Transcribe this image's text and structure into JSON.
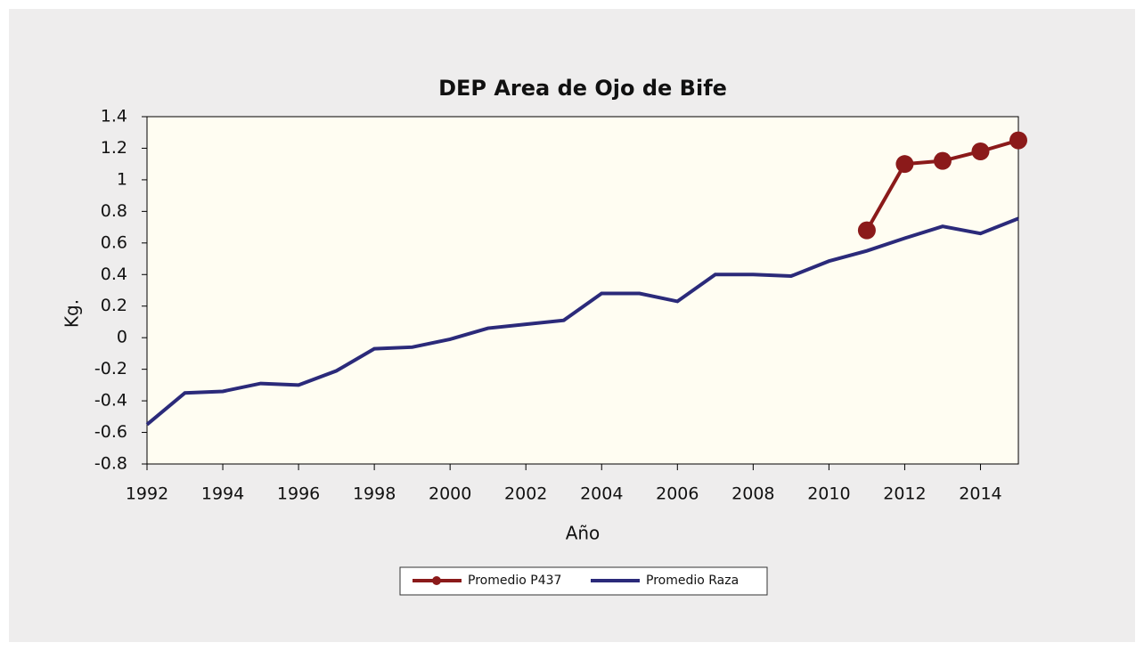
{
  "chart_data": {
    "type": "line",
    "title": "DEP Area de Ojo de Bife",
    "xlabel": "Año",
    "ylabel": "Kg.",
    "x": [
      1992,
      1993,
      1994,
      1995,
      1996,
      1997,
      1998,
      1999,
      2000,
      2001,
      2002,
      2003,
      2004,
      2005,
      2006,
      2007,
      2008,
      2009,
      2010,
      2011,
      2012,
      2013,
      2014,
      2015
    ],
    "series": [
      {
        "name": "Promedio P437",
        "color": "#8b1a1a",
        "markers": true,
        "values": [
          null,
          null,
          null,
          null,
          null,
          null,
          null,
          null,
          null,
          null,
          null,
          null,
          null,
          null,
          null,
          null,
          null,
          null,
          null,
          0.68,
          1.1,
          1.12,
          1.18,
          1.25
        ]
      },
      {
        "name": "Promedio Raza",
        "color": "#2b2a7a",
        "markers": false,
        "values": [
          -0.55,
          -0.35,
          -0.34,
          -0.29,
          -0.3,
          -0.21,
          -0.07,
          -0.06,
          -0.01,
          0.06,
          0.085,
          0.11,
          0.28,
          0.28,
          0.23,
          0.4,
          0.4,
          0.39,
          0.485,
          0.55,
          0.63,
          0.705,
          0.66,
          0.755
        ]
      }
    ],
    "xlim": [
      1992,
      2015
    ],
    "xticks": [
      1992,
      1994,
      1996,
      1998,
      2000,
      2002,
      2004,
      2006,
      2008,
      2010,
      2012,
      2014
    ],
    "ylim": [
      -0.8,
      1.4
    ],
    "yticks": [
      -0.8,
      -0.6,
      -0.4,
      -0.2,
      0,
      0.2,
      0.4,
      0.6,
      0.8,
      1,
      1.2,
      1.4
    ],
    "legend": "bottom"
  }
}
